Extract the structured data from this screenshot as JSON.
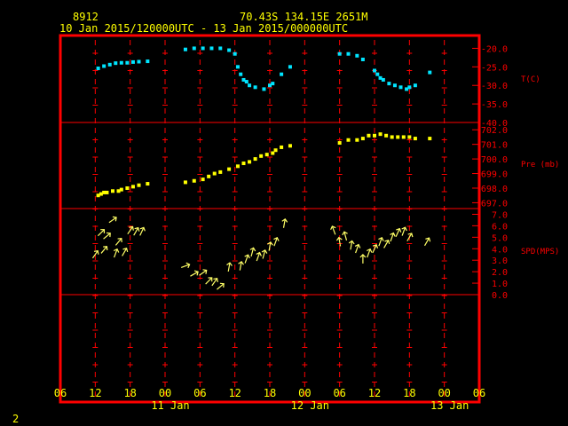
{
  "header": {
    "station": "8912",
    "location": "70.43S  134.15E  2651M",
    "period": "10 Jan 2015/120000UTC - 13 Jan 2015/000000UTC"
  },
  "page_number": "2",
  "colors": {
    "background": "#000000",
    "frame": "#ff0000",
    "gridline": "#ff0000",
    "temperature": "#00e5ff",
    "pressure": "#ffff00",
    "wind": "#ffff66",
    "header_text": "#ffff00",
    "axis_text": "#ffff00",
    "panel_labels": "#ff0000"
  },
  "chart_data": {
    "type": "scatter",
    "x_axis": {
      "unit": "hours since 10 Jan 06 UTC",
      "range": [
        0,
        72
      ],
      "tick_labels": [
        "06",
        "12",
        "18",
        "00",
        "06",
        "12",
        "18",
        "00",
        "06",
        "12",
        "18",
        "00",
        "06"
      ],
      "day_labels": [
        "11 Jan",
        "12 Jan",
        "13 Jan"
      ]
    },
    "panels": [
      {
        "name": "T(C)",
        "ylim": [
          -40,
          -17.5
        ],
        "ticks": [
          "-20.0",
          "-25.0",
          "-30.0",
          "-35.0",
          "-40.0"
        ],
        "tick_values": [
          -20,
          -25,
          -30,
          -35,
          -40
        ],
        "points": [
          [
            6.5,
            -25.4
          ],
          [
            7.5,
            -24.8
          ],
          [
            8.5,
            -24.4
          ],
          [
            9.5,
            -24.0
          ],
          [
            10.5,
            -23.9
          ],
          [
            11.5,
            -23.9
          ],
          [
            12.5,
            -23.7
          ],
          [
            13.5,
            -23.6
          ],
          [
            15.0,
            -23.5
          ],
          [
            21.5,
            -20.3
          ],
          [
            23.0,
            -20.0
          ],
          [
            24.5,
            -20.0
          ],
          [
            26.0,
            -20.0
          ],
          [
            27.5,
            -20.0
          ],
          [
            29.0,
            -20.5
          ],
          [
            30.0,
            -21.5
          ],
          [
            30.5,
            -25.0
          ],
          [
            31.0,
            -27.0
          ],
          [
            31.5,
            -28.5
          ],
          [
            32.0,
            -29.0
          ],
          [
            32.5,
            -30.0
          ],
          [
            33.5,
            -30.5
          ],
          [
            35.0,
            -31.0
          ],
          [
            36.0,
            -30.0
          ],
          [
            36.5,
            -29.5
          ],
          [
            38.0,
            -27.0
          ],
          [
            39.5,
            -25.0
          ],
          [
            48.0,
            -21.5
          ],
          [
            49.5,
            -21.5
          ],
          [
            51.0,
            -22.0
          ],
          [
            52.0,
            -23.0
          ],
          [
            54.0,
            -26.0
          ],
          [
            54.5,
            -27.0
          ],
          [
            55.0,
            -28.0
          ],
          [
            55.5,
            -28.5
          ],
          [
            56.5,
            -29.5
          ],
          [
            57.5,
            -30.0
          ],
          [
            58.5,
            -30.5
          ],
          [
            59.5,
            -31.0
          ],
          [
            60.0,
            -30.5
          ],
          [
            61.0,
            -30.0
          ],
          [
            63.5,
            -26.5
          ]
        ]
      },
      {
        "name": "Pre (mb)",
        "ylim": [
          696.6,
          702.5
        ],
        "ticks": [
          "702.0",
          "701.0",
          "700.0",
          "699.0",
          "698.0",
          "697.0"
        ],
        "tick_values": [
          702,
          701,
          700,
          699,
          698,
          697
        ],
        "points": [
          [
            6.5,
            697.5
          ],
          [
            7.0,
            697.6
          ],
          [
            7.5,
            697.7
          ],
          [
            8.0,
            697.7
          ],
          [
            9.0,
            697.8
          ],
          [
            10.0,
            697.8
          ],
          [
            10.5,
            697.9
          ],
          [
            11.5,
            698.0
          ],
          [
            12.5,
            698.1
          ],
          [
            13.5,
            698.2
          ],
          [
            15.0,
            698.3
          ],
          [
            21.5,
            698.4
          ],
          [
            23.0,
            698.5
          ],
          [
            24.5,
            698.6
          ],
          [
            25.5,
            698.8
          ],
          [
            26.5,
            699.0
          ],
          [
            27.5,
            699.1
          ],
          [
            29.0,
            699.3
          ],
          [
            30.5,
            699.5
          ],
          [
            31.5,
            699.7
          ],
          [
            32.5,
            699.8
          ],
          [
            33.5,
            700.0
          ],
          [
            34.5,
            700.2
          ],
          [
            35.5,
            700.3
          ],
          [
            36.5,
            700.4
          ],
          [
            37.0,
            700.6
          ],
          [
            38.0,
            700.8
          ],
          [
            39.5,
            700.9
          ],
          [
            48.0,
            701.1
          ],
          [
            49.5,
            701.3
          ],
          [
            51.0,
            701.3
          ],
          [
            52.0,
            701.4
          ],
          [
            53.0,
            701.6
          ],
          [
            54.0,
            701.6
          ],
          [
            55.0,
            701.7
          ],
          [
            56.0,
            701.6
          ],
          [
            57.0,
            701.5
          ],
          [
            58.0,
            701.5
          ],
          [
            59.0,
            701.5
          ],
          [
            60.0,
            701.5
          ],
          [
            61.0,
            701.4
          ],
          [
            63.5,
            701.4
          ]
        ]
      },
      {
        "name": "SPD(MPS)",
        "ylim": [
          0,
          7.5
        ],
        "ticks": [
          "7.0",
          "6.0",
          "5.0",
          "4.0",
          "3.0",
          "2.0",
          "1.0",
          "0.0"
        ],
        "tick_values": [
          7,
          6,
          5,
          4,
          3,
          2,
          1,
          0
        ],
        "wind_arrows": [
          {
            "x": 6.0,
            "speed": 3.5,
            "dir_deg": 35
          },
          {
            "x": 7.0,
            "speed": 5.4,
            "dir_deg": 45
          },
          {
            "x": 7.5,
            "speed": 3.9,
            "dir_deg": 40
          },
          {
            "x": 8.0,
            "speed": 5.1,
            "dir_deg": 50
          },
          {
            "x": 9.0,
            "speed": 6.5,
            "dir_deg": 55
          },
          {
            "x": 9.5,
            "speed": 3.6,
            "dir_deg": 20
          },
          {
            "x": 10.0,
            "speed": 4.6,
            "dir_deg": 40
          },
          {
            "x": 11.0,
            "speed": 3.7,
            "dir_deg": 30
          },
          {
            "x": 12.0,
            "speed": 5.6,
            "dir_deg": 35
          },
          {
            "x": 13.0,
            "speed": 5.5,
            "dir_deg": 30
          },
          {
            "x": 14.0,
            "speed": 5.5,
            "dir_deg": 25
          },
          {
            "x": 21.5,
            "speed": 2.5,
            "dir_deg": 70
          },
          {
            "x": 23.0,
            "speed": 1.8,
            "dir_deg": 60
          },
          {
            "x": 24.5,
            "speed": 1.9,
            "dir_deg": 55
          },
          {
            "x": 25.5,
            "speed": 1.2,
            "dir_deg": 45
          },
          {
            "x": 26.5,
            "speed": 1.1,
            "dir_deg": 35
          },
          {
            "x": 27.5,
            "speed": 0.7,
            "dir_deg": 50
          },
          {
            "x": 29.0,
            "speed": 2.4,
            "dir_deg": 10
          },
          {
            "x": 31.0,
            "speed": 2.5,
            "dir_deg": 10
          },
          {
            "x": 32.0,
            "speed": 3.1,
            "dir_deg": 20
          },
          {
            "x": 33.0,
            "speed": 3.7,
            "dir_deg": 15
          },
          {
            "x": 34.0,
            "speed": 3.3,
            "dir_deg": 20
          },
          {
            "x": 35.0,
            "speed": 3.5,
            "dir_deg": 15
          },
          {
            "x": 36.0,
            "speed": 4.2,
            "dir_deg": 10
          },
          {
            "x": 37.0,
            "speed": 4.6,
            "dir_deg": 20
          },
          {
            "x": 38.5,
            "speed": 6.2,
            "dir_deg": 10
          },
          {
            "x": 47.0,
            "speed": 5.6,
            "dir_deg": 340
          },
          {
            "x": 48.0,
            "speed": 4.6,
            "dir_deg": 350
          },
          {
            "x": 49.0,
            "speed": 5.1,
            "dir_deg": 345
          },
          {
            "x": 50.0,
            "speed": 4.3,
            "dir_deg": 10
          },
          {
            "x": 51.0,
            "speed": 4.0,
            "dir_deg": 20
          },
          {
            "x": 52.0,
            "speed": 3.1,
            "dir_deg": 0
          },
          {
            "x": 53.0,
            "speed": 3.6,
            "dir_deg": 20
          },
          {
            "x": 54.0,
            "speed": 4.0,
            "dir_deg": 25
          },
          {
            "x": 55.0,
            "speed": 4.6,
            "dir_deg": 20
          },
          {
            "x": 56.0,
            "speed": 4.4,
            "dir_deg": 30
          },
          {
            "x": 57.0,
            "speed": 5.0,
            "dir_deg": 20
          },
          {
            "x": 58.0,
            "speed": 5.4,
            "dir_deg": 25
          },
          {
            "x": 59.0,
            "speed": 5.5,
            "dir_deg": 20
          },
          {
            "x": 60.0,
            "speed": 5.0,
            "dir_deg": 30
          },
          {
            "x": 63.0,
            "speed": 4.6,
            "dir_deg": 30
          }
        ]
      }
    ]
  }
}
